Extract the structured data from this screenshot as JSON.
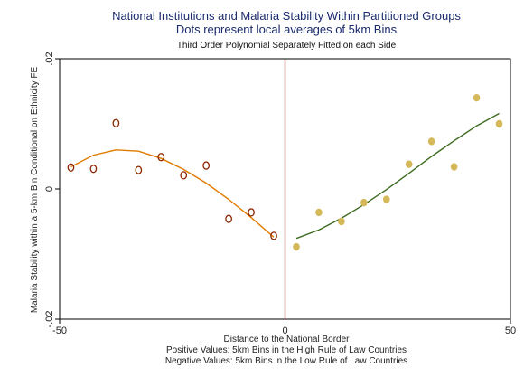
{
  "chart_data": {
    "type": "scatter",
    "title": "National Institutions and Malaria Stability Within Partitioned Groups",
    "subtitle": "Dots represent local averages of 5km Bins",
    "subtitle2": "Third Order Polynomial Separately Fitted on each Side",
    "xlabel": "Distance to the National Border",
    "ylabel": "Malaria Stability within a 5-km Bin Conditional on Ethnicity FE",
    "note1": "Positive  Values: 5km Bins in the High Rule of Law Countries",
    "note2": "Negative Values: 5km Bins in the Low Rule of Law Countries",
    "xlim": [
      -50,
      50
    ],
    "ylim": [
      -0.02,
      0.02
    ],
    "xticks": [
      {
        "value": -50,
        "label": "-50"
      },
      {
        "value": 0,
        "label": "0"
      },
      {
        "value": 50,
        "label": "50"
      }
    ],
    "yticks": [
      {
        "value": -0.02,
        "label": "-.02"
      },
      {
        "value": 0,
        "label": "0"
      },
      {
        "value": 0.02,
        "label": ".02"
      }
    ],
    "cutoff": 0,
    "colors": {
      "left_points": "#8b2500",
      "left_fit": "#e07b00",
      "right_points": "#d4b85a",
      "right_fit": "#3d6b20",
      "cutoff_line": "#8b1a2a",
      "title": "#1a2a6c"
    },
    "series": [
      {
        "side": "left",
        "marker": "hollow-circle",
        "points": [
          {
            "x": -47.5,
            "y": 0.0033
          },
          {
            "x": -42.5,
            "y": 0.0031
          },
          {
            "x": -37.5,
            "y": 0.0101
          },
          {
            "x": -32.5,
            "y": 0.0029
          },
          {
            "x": -27.5,
            "y": 0.0049
          },
          {
            "x": -22.5,
            "y": 0.0021
          },
          {
            "x": -17.5,
            "y": 0.0036
          },
          {
            "x": -12.5,
            "y": -0.0046
          },
          {
            "x": -7.5,
            "y": -0.0036
          },
          {
            "x": -2.5,
            "y": -0.0072
          }
        ],
        "fit": [
          {
            "x": -47.5,
            "y": 0.0034
          },
          {
            "x": -42.5,
            "y": 0.0052
          },
          {
            "x": -37.5,
            "y": 0.006
          },
          {
            "x": -32.5,
            "y": 0.0058
          },
          {
            "x": -27.5,
            "y": 0.0047
          },
          {
            "x": -22.5,
            "y": 0.003
          },
          {
            "x": -17.5,
            "y": 0.0009
          },
          {
            "x": -12.5,
            "y": -0.0016
          },
          {
            "x": -7.5,
            "y": -0.0044
          },
          {
            "x": -2.5,
            "y": -0.0074
          }
        ]
      },
      {
        "side": "right",
        "marker": "filled-circle",
        "points": [
          {
            "x": 2.5,
            "y": -0.0089
          },
          {
            "x": 7.5,
            "y": -0.0036
          },
          {
            "x": 12.5,
            "y": -0.005
          },
          {
            "x": 17.5,
            "y": -0.0021
          },
          {
            "x": 22.5,
            "y": -0.0016
          },
          {
            "x": 27.5,
            "y": 0.0038
          },
          {
            "x": 32.5,
            "y": 0.0073
          },
          {
            "x": 37.5,
            "y": 0.0034
          },
          {
            "x": 42.5,
            "y": 0.014
          },
          {
            "x": 47.5,
            "y": 0.01
          }
        ],
        "fit": [
          {
            "x": 2.5,
            "y": -0.0076
          },
          {
            "x": 7.5,
            "y": -0.0063
          },
          {
            "x": 12.5,
            "y": -0.0045
          },
          {
            "x": 17.5,
            "y": -0.0024
          },
          {
            "x": 22.5,
            "y": -0.0001
          },
          {
            "x": 27.5,
            "y": 0.0024
          },
          {
            "x": 32.5,
            "y": 0.005
          },
          {
            "x": 37.5,
            "y": 0.0074
          },
          {
            "x": 42.5,
            "y": 0.0097
          },
          {
            "x": 47.5,
            "y": 0.0116
          }
        ]
      }
    ]
  }
}
